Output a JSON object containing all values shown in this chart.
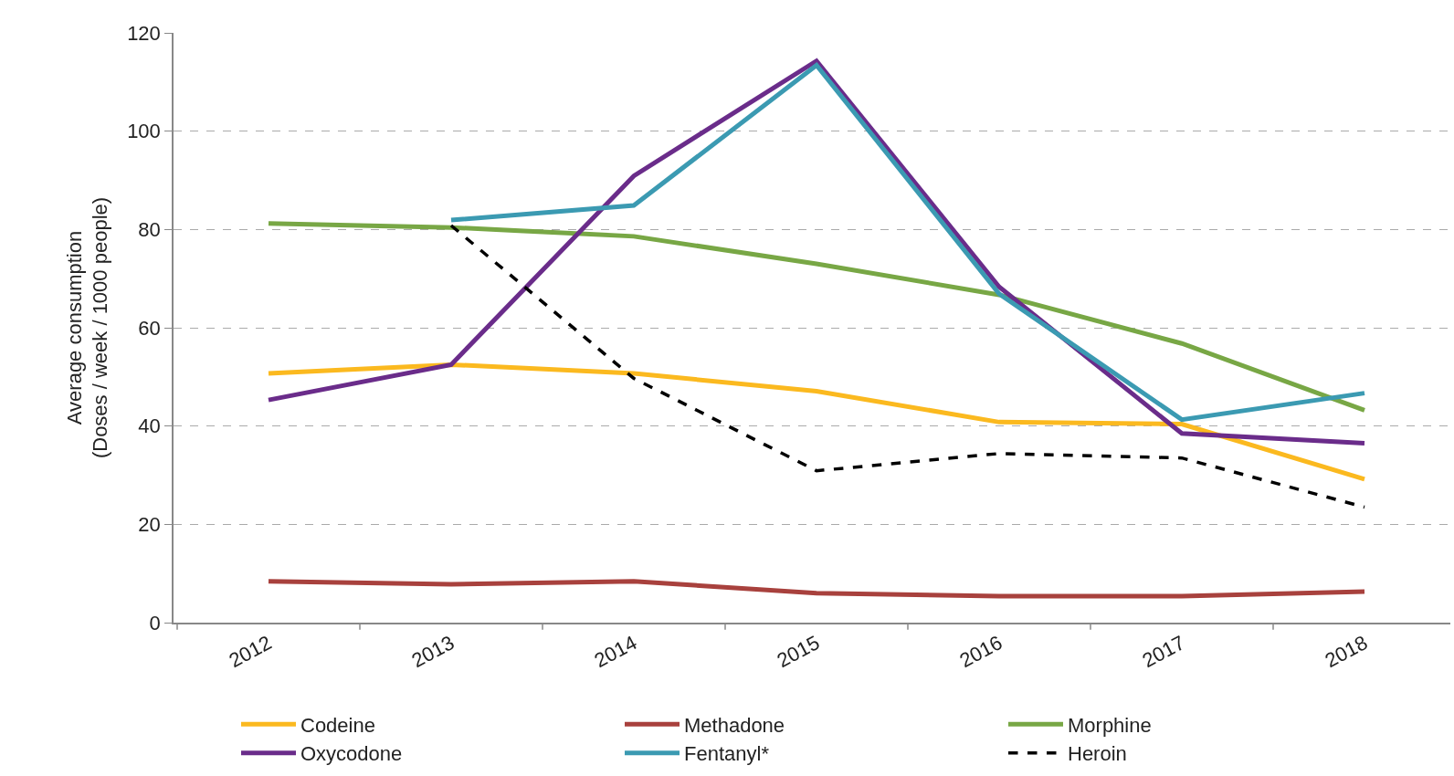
{
  "chart_data": {
    "type": "line",
    "ylabel": "Average consumption\n(Doses / week / 1000 people)",
    "categories": [
      "2012",
      "2013",
      "2014",
      "2015",
      "2016",
      "2017",
      "2018"
    ],
    "ylim": [
      0,
      120
    ],
    "yticks": [
      0,
      20,
      40,
      60,
      80,
      100,
      120
    ],
    "grid": "y",
    "legend": "bottom",
    "marker": "none",
    "series": [
      {
        "name": "Codeine",
        "color": "#fbb91f",
        "values": [
          50.7,
          52.5,
          50.7,
          47.1,
          40.8,
          40.4,
          29.2
        ]
      },
      {
        "name": "Methadone",
        "color": "#a8413d",
        "values": [
          8.4,
          7.8,
          8.4,
          6,
          5.4,
          5.4,
          6.3
        ]
      },
      {
        "name": "Morphine",
        "color": "#78a745",
        "values": [
          81.2,
          80.4,
          78.6,
          73,
          66.7,
          56.8,
          43.2
        ]
      },
      {
        "name": "Oxycodone",
        "color": "#6a2c8a",
        "values": [
          45.3,
          52.5,
          90.9,
          114.3,
          68.3,
          38.5,
          36.5
        ]
      },
      {
        "name": "Fentanyl*",
        "color": "#3b9ab2",
        "values": [
          null,
          81.9,
          84.9,
          113.4,
          66.9,
          41.3,
          46.7
        ]
      },
      {
        "name": "Heroin",
        "color": "#000000",
        "values": [
          null,
          80.8,
          49.7,
          30.9,
          34.4,
          33.5,
          23.5
        ],
        "line_style": "dashed"
      }
    ]
  }
}
